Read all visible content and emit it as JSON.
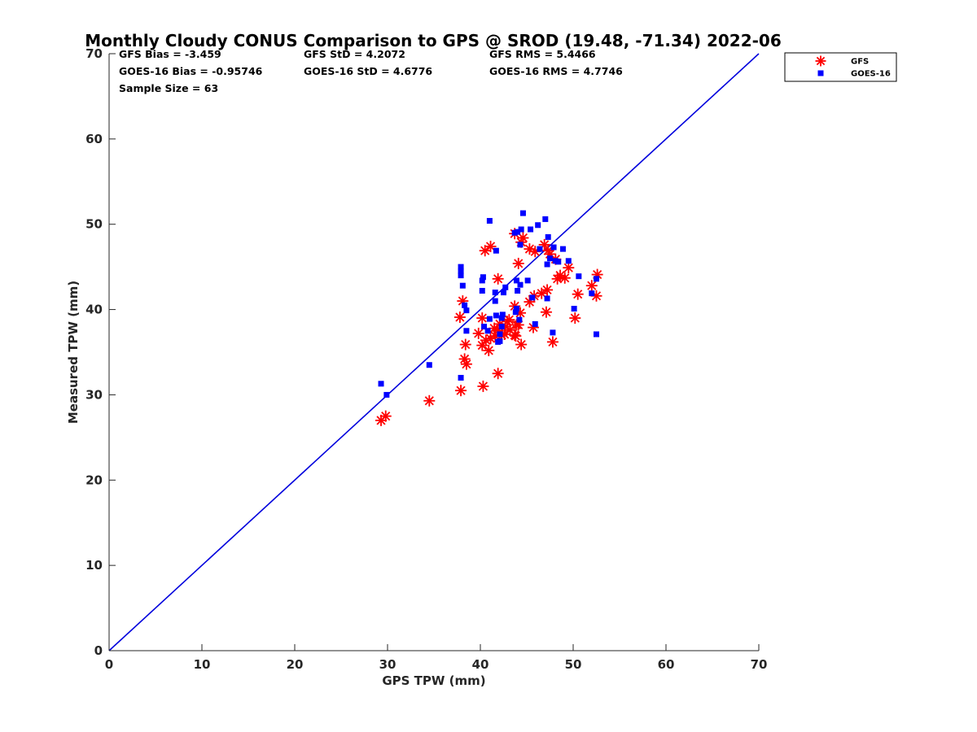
{
  "chart_data": {
    "type": "scatter",
    "title": "Monthly Cloudy CONUS Comparison to GPS @ SROD (19.48, -71.34) 2022-06",
    "xlabel": "GPS TPW (mm)",
    "ylabel": "Measured TPW (mm)",
    "xlim": [
      0,
      70
    ],
    "ylim": [
      0,
      70
    ],
    "xticks": [
      0,
      10,
      20,
      30,
      40,
      50,
      60,
      70
    ],
    "yticks": [
      0,
      10,
      20,
      30,
      40,
      50,
      60,
      70
    ],
    "grid": false,
    "legend_position": "outside-top-right",
    "reference_line": {
      "x": [
        0,
        70
      ],
      "y": [
        0,
        70
      ],
      "color": "#0000dd"
    },
    "stats": [
      {
        "text": "GFS Bias = -3.459"
      },
      {
        "text": "GFS StD = 4.2072"
      },
      {
        "text": "GFS RMS = 5.4466"
      },
      {
        "text": "GOES-16 Bias = -0.95746"
      },
      {
        "text": "GOES-16 StD = 4.6776"
      },
      {
        "text": "GOES-16 RMS = 4.7746"
      },
      {
        "text": "Sample Size = 63"
      }
    ],
    "series": [
      {
        "name": "GFS",
        "marker": "asterisk",
        "color": "#ff0000",
        "points": [
          [
            29.3,
            27.0
          ],
          [
            29.8,
            27.5
          ],
          [
            34.5,
            29.3
          ],
          [
            37.9,
            30.5
          ],
          [
            40.3,
            31.0
          ],
          [
            41.9,
            32.5
          ],
          [
            38.3,
            34.2
          ],
          [
            38.5,
            33.6
          ],
          [
            38.4,
            35.9
          ],
          [
            40.2,
            35.8
          ],
          [
            40.9,
            35.2
          ],
          [
            40.6,
            36.4
          ],
          [
            41.6,
            36.9
          ],
          [
            41.9,
            37.5
          ],
          [
            42.3,
            37.0
          ],
          [
            42.7,
            38.0
          ],
          [
            43.2,
            37.6
          ],
          [
            43.7,
            37.0
          ],
          [
            43.9,
            38.2
          ],
          [
            44.4,
            35.9
          ],
          [
            45.7,
            37.9
          ],
          [
            47.8,
            36.2
          ],
          [
            37.8,
            39.1
          ],
          [
            38.1,
            41.0
          ],
          [
            40.2,
            39.0
          ],
          [
            42.9,
            38.6
          ],
          [
            43.7,
            40.4
          ],
          [
            44.3,
            39.6
          ],
          [
            45.3,
            40.9
          ],
          [
            45.8,
            41.6
          ],
          [
            47.1,
            39.7
          ],
          [
            50.2,
            39.0
          ],
          [
            47.2,
            42.3
          ],
          [
            48.3,
            43.6
          ],
          [
            48.6,
            44.0
          ],
          [
            49.1,
            43.7
          ],
          [
            49.5,
            44.9
          ],
          [
            50.5,
            41.8
          ],
          [
            52.0,
            42.8
          ],
          [
            52.5,
            41.6
          ],
          [
            52.6,
            44.1
          ],
          [
            40.5,
            46.9
          ],
          [
            41.1,
            47.4
          ],
          [
            41.9,
            43.6
          ],
          [
            44.1,
            45.4
          ],
          [
            44.4,
            47.9
          ],
          [
            43.7,
            48.9
          ],
          [
            44.6,
            48.4
          ],
          [
            45.3,
            47.1
          ],
          [
            45.9,
            46.8
          ],
          [
            46.9,
            47.6
          ],
          [
            47.5,
            46.5
          ],
          [
            48.1,
            45.9
          ],
          [
            47.3,
            46.9
          ],
          [
            42.1,
            38.3
          ],
          [
            41.1,
            36.6
          ],
          [
            43.1,
            38.8
          ],
          [
            44.1,
            38.2
          ],
          [
            39.8,
            37.2
          ],
          [
            41.5,
            37.8
          ],
          [
            42.6,
            37.1
          ],
          [
            43.8,
            36.9
          ],
          [
            46.6,
            41.9
          ]
        ]
      },
      {
        "name": "GOES-16",
        "marker": "square",
        "color": "#0000ff",
        "points": [
          [
            29.3,
            31.3
          ],
          [
            29.9,
            30.0
          ],
          [
            34.5,
            33.5
          ],
          [
            37.9,
            32.0
          ],
          [
            37.9,
            44.0
          ],
          [
            37.9,
            44.5
          ],
          [
            37.9,
            45.0
          ],
          [
            38.1,
            42.8
          ],
          [
            38.3,
            40.5
          ],
          [
            38.5,
            39.9
          ],
          [
            38.5,
            37.5
          ],
          [
            40.2,
            42.2
          ],
          [
            40.2,
            43.4
          ],
          [
            40.3,
            43.8
          ],
          [
            40.4,
            38.0
          ],
          [
            40.8,
            37.5
          ],
          [
            41.0,
            38.9
          ],
          [
            41.0,
            50.4
          ],
          [
            41.6,
            41.0
          ],
          [
            41.6,
            42.0
          ],
          [
            41.7,
            46.9
          ],
          [
            41.7,
            39.3
          ],
          [
            41.9,
            36.2
          ],
          [
            42.1,
            36.3
          ],
          [
            42.1,
            37.1
          ],
          [
            42.3,
            38.0
          ],
          [
            42.3,
            39.0
          ],
          [
            42.5,
            42.0
          ],
          [
            42.7,
            42.6
          ],
          [
            43.7,
            49.0
          ],
          [
            43.8,
            39.7
          ],
          [
            43.9,
            40.1
          ],
          [
            43.9,
            43.4
          ],
          [
            44.0,
            42.2
          ],
          [
            44.0,
            49.1
          ],
          [
            44.3,
            42.9
          ],
          [
            44.3,
            47.6
          ],
          [
            44.4,
            49.4
          ],
          [
            44.6,
            51.3
          ],
          [
            45.1,
            43.4
          ],
          [
            45.4,
            49.4
          ],
          [
            45.6,
            41.4
          ],
          [
            45.9,
            38.3
          ],
          [
            46.2,
            49.9
          ],
          [
            46.4,
            47.1
          ],
          [
            47.0,
            50.6
          ],
          [
            47.2,
            41.3
          ],
          [
            47.2,
            45.3
          ],
          [
            47.3,
            48.5
          ],
          [
            47.5,
            46.0
          ],
          [
            47.9,
            47.3
          ],
          [
            48.1,
            45.7
          ],
          [
            48.4,
            45.6
          ],
          [
            48.9,
            47.1
          ],
          [
            49.5,
            45.7
          ],
          [
            50.1,
            40.1
          ],
          [
            50.6,
            43.9
          ],
          [
            52.0,
            41.9
          ],
          [
            52.5,
            43.6
          ],
          [
            52.5,
            37.1
          ],
          [
            47.8,
            37.3
          ],
          [
            42.4,
            39.4
          ],
          [
            44.2,
            38.8
          ]
        ]
      }
    ]
  }
}
